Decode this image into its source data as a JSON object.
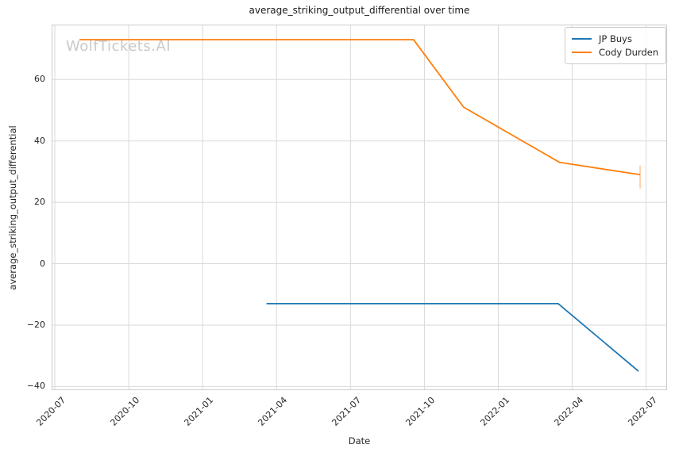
{
  "watermark": "WolfTickets.AI",
  "colors": {
    "jp_buys": "#1f77b4",
    "cody_durden": "#ff7f0e",
    "grid": "#d9d9d9",
    "spine": "#cccccc",
    "text": "#262626",
    "watermark": "#c9c9c9",
    "error_bar": "rgba(255,127,14,0.45)"
  },
  "chart_data": {
    "type": "line",
    "title": "average_striking_output_differential over time",
    "xlabel": "Date",
    "ylabel": "average_striking_output_differential",
    "grid": true,
    "legend_position": "upper right",
    "x_tick_labels": [
      "2020-07",
      "2020-10",
      "2021-01",
      "2021-04",
      "2021-07",
      "2021-10",
      "2022-01",
      "2022-04",
      "2022-07"
    ],
    "y_ticks": [
      60,
      40,
      20,
      0,
      -20,
      -40
    ],
    "y_tick_labels": [
      "60",
      "40",
      "20",
      "0",
      "−20",
      "−40"
    ],
    "ylim": [
      -41.2,
      77.9
    ],
    "x_range_months_from_2020_07": [
      -0.13,
      24.85
    ],
    "series": [
      {
        "name": "JP Buys",
        "color": "#1f77b4",
        "points": [
          {
            "date": "2021-03-19",
            "value": -13
          },
          {
            "date": "2022-03-14",
            "value": -13
          },
          {
            "date": "2022-06-22",
            "value": -35
          }
        ]
      },
      {
        "name": "Cody Durden",
        "color": "#ff7f0e",
        "points": [
          {
            "date": "2020-08-01",
            "value": 73
          },
          {
            "date": "2021-09-18",
            "value": 73
          },
          {
            "date": "2021-11-19",
            "value": 51
          },
          {
            "date": "2022-03-16",
            "value": 33
          },
          {
            "date": "2022-06-24",
            "value": 29
          }
        ],
        "error_bar_last": {
          "low": 24.5,
          "high": 32
        }
      }
    ]
  }
}
